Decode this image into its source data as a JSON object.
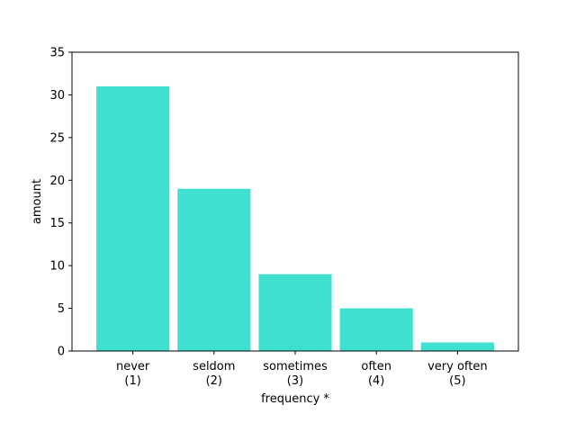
{
  "chart_data": {
    "type": "bar",
    "title": "",
    "xlabel": "frequency *",
    "ylabel": "amount",
    "categories": [
      [
        "never",
        "(1)"
      ],
      [
        "seldom",
        "(2)"
      ],
      [
        "sometimes",
        "(3)"
      ],
      [
        "often",
        "(4)"
      ],
      [
        "very often",
        "(5)"
      ]
    ],
    "values": [
      31,
      19,
      9,
      5,
      1
    ],
    "ylim": [
      0,
      35
    ],
    "yticks": [
      0,
      5,
      10,
      15,
      20,
      25,
      30,
      35
    ],
    "grid": false,
    "legend": "none",
    "bar_color": "#40e0d0"
  }
}
